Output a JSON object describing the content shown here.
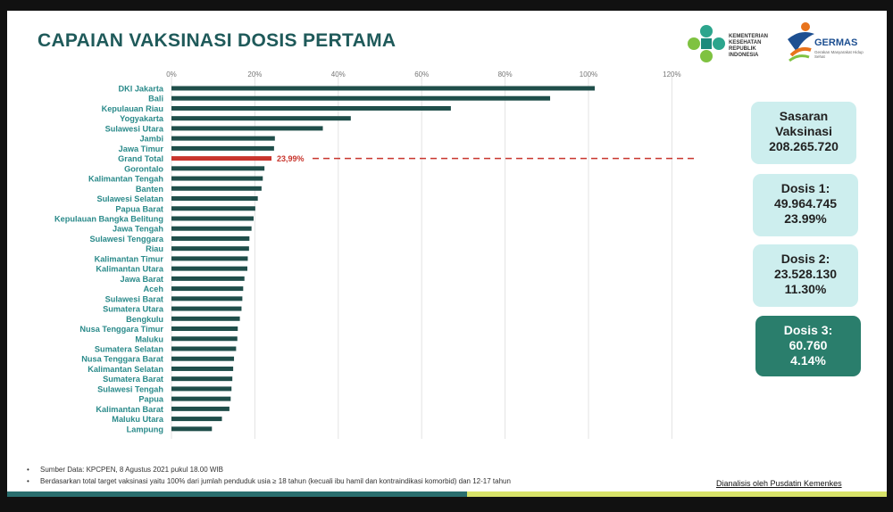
{
  "title": "CAPAIAN VAKSINASI DOSIS PERTAMA",
  "logos": {
    "kemenkes": "KEMENTERIAN KESEHATAN REPUBLIK INDONESIA",
    "germas": "GERMAS",
    "germas_tagline": "Gerakan Masyarakat Hidup Sehat"
  },
  "colors": {
    "bar": "#1f4e4a",
    "highlight": "#c8342c",
    "label": "#2a8a8a",
    "card_light": "#cdeeee",
    "card_dark": "#2a7e6c"
  },
  "chart_data": {
    "type": "bar",
    "orientation": "horizontal",
    "categories": [
      "DKI Jakarta",
      "Bali",
      "Kepulauan Riau",
      "Yogyakarta",
      "Sulawesi Utara",
      "Jambi",
      "Jawa Timur",
      "Grand Total",
      "Gorontalo",
      "Kalimantan Tengah",
      "Banten",
      "Sulawesi Selatan",
      "Papua Barat",
      "Kepulauan Bangka Belitung",
      "Jawa Tengah",
      "Sulawesi Tenggara",
      "Riau",
      "Kalimantan Timur",
      "Kalimantan Utara",
      "Jawa Barat",
      "Aceh",
      "Sulawesi Barat",
      "Sumatera Utara",
      "Bengkulu",
      "Nusa Tenggara Timur",
      "Maluku",
      "Sumatera Selatan",
      "Nusa Tenggara Barat",
      "Kalimantan Selatan",
      "Sumatera Barat",
      "Sulawesi Tengah",
      "Papua",
      "Kalimantan Barat",
      "Maluku Utara",
      "Lampung"
    ],
    "values": [
      101.5,
      90.8,
      67.0,
      43.0,
      36.3,
      24.8,
      24.6,
      23.99,
      22.3,
      21.9,
      21.6,
      20.7,
      20.1,
      19.7,
      19.2,
      18.7,
      18.6,
      18.3,
      18.2,
      17.5,
      17.2,
      17.0,
      16.8,
      16.4,
      15.9,
      15.8,
      15.5,
      15.0,
      14.8,
      14.6,
      14.4,
      14.2,
      13.9,
      12.1,
      9.7
    ],
    "highlight_category": "Grand Total",
    "highlight_label": "23,99%",
    "xlim": [
      0,
      125
    ],
    "xticks": [
      "0%",
      "20%",
      "40%",
      "60%",
      "80%",
      "100%",
      "120%"
    ],
    "grid": true
  },
  "cards": {
    "sasaran": {
      "line1": "Sasaran",
      "line2": "Vaksinasi",
      "line3": "208.265.720"
    },
    "dosis1": {
      "line1": "Dosis 1:",
      "line2": "49.964.745",
      "line3": "23.99%"
    },
    "dosis2": {
      "line1": "Dosis 2:",
      "line2": "23.528.130",
      "line3": "11.30%"
    },
    "dosis3": {
      "line1": "Dosis 3:",
      "line2": "60.760",
      "line3": "4.14%"
    }
  },
  "footnotes": [
    "Sumber Data: KPCPEN, 8 Agustus 2021 pukul 18.00 WIB",
    "Berdasarkan total target vaksinasi yaitu 100% dari jumlah penduduk usia ≥ 18 tahun (kecuali ibu hamil dan kontraindikasi komorbid) dan 12-17 tahun"
  ],
  "analyzed_by": "Dianalisis oleh Pusdatin Kemenkes"
}
